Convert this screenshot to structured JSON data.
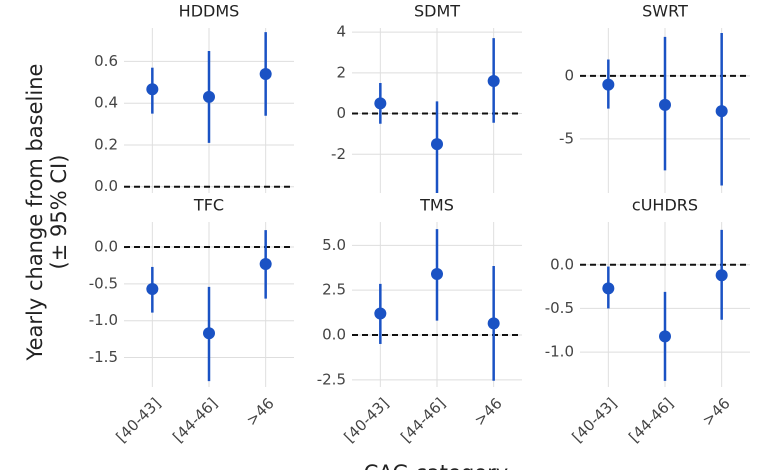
{
  "ylabel": [
    "Yearly change from baseline",
    "(± 95% CI)"
  ],
  "xlabel": "CAG category",
  "chart_data": [
    {
      "type": "pointrange",
      "title": "HDDMS",
      "categories": [
        "[40-43]",
        "[44-46]",
        ">46"
      ],
      "values": [
        0.467,
        0.43,
        0.54
      ],
      "lower": [
        0.35,
        0.21,
        0.34
      ],
      "upper": [
        0.57,
        0.65,
        0.74
      ],
      "color": "#1a52c4",
      "ylim": [
        -0.03,
        0.76
      ],
      "yticks": [
        {
          "value": 0,
          "label": "0.0"
        },
        0.2,
        0.4,
        0.6
      ],
      "hline": 0,
      "grid": true
    },
    {
      "type": "pointrange",
      "title": "SDMT",
      "categories": [
        "[40-43]",
        "[44-46]",
        ">46"
      ],
      "values": [
        0.5,
        -1.5,
        1.6
      ],
      "lower": [
        -0.5,
        -3.9,
        -0.45
      ],
      "upper": [
        1.5,
        0.6,
        3.7
      ],
      "color": "#1a52c4",
      "ylim": [
        -3.9,
        4.2
      ],
      "yticks": [
        -2,
        0,
        2,
        4
      ],
      "hline": 0,
      "grid": true
    },
    {
      "type": "pointrange",
      "title": "SWRT",
      "categories": [
        "[40-43]",
        "[44-46]",
        ">46"
      ],
      "values": [
        -0.7,
        -2.3,
        -2.8
      ],
      "lower": [
        -2.6,
        -7.5,
        -8.7
      ],
      "upper": [
        1.3,
        3.1,
        3.4
      ],
      "color": "#1a52c4",
      "ylim": [
        -9.3,
        3.8
      ],
      "yticks": [
        -5,
        0
      ],
      "hline": 0,
      "grid": true
    },
    {
      "type": "pointrange",
      "title": "TFC",
      "categories": [
        "[40-43]",
        "[44-46]",
        ">46"
      ],
      "values": [
        -0.57,
        -1.17,
        -0.23
      ],
      "lower": [
        -0.89,
        -1.82,
        -0.7
      ],
      "upper": [
        -0.27,
        -0.54,
        0.23
      ],
      "color": "#1a52c4",
      "ylim": [
        -1.9,
        0.34
      ],
      "yticks": [
        {
          "value": -1.5,
          "label": "-1.5"
        },
        {
          "value": -1,
          "label": "-1.0"
        },
        -0.5,
        {
          "value": 0,
          "label": "0.0"
        }
      ],
      "hline": 0,
      "grid": true
    },
    {
      "type": "pointrange",
      "title": "TMS",
      "categories": [
        "[40-43]",
        "[44-46]",
        ">46"
      ],
      "values": [
        1.2,
        3.4,
        0.65
      ],
      "lower": [
        -0.5,
        0.8,
        -2.55
      ],
      "upper": [
        2.85,
        5.9,
        3.85
      ],
      "color": "#1a52c4",
      "ylim": [
        -2.9,
        6.3
      ],
      "yticks": [
        -2.5,
        {
          "value": 0,
          "label": "0.0"
        },
        2.5,
        {
          "value": 5,
          "label": "5.0"
        }
      ],
      "hline": 0,
      "grid": true
    },
    {
      "type": "pointrange",
      "title": "cUHDRS",
      "categories": [
        "[40-43]",
        "[44-46]",
        ">46"
      ],
      "values": [
        -0.27,
        -0.82,
        -0.12
      ],
      "lower": [
        -0.5,
        -1.33,
        -0.63
      ],
      "upper": [
        -0.02,
        -0.31,
        0.4
      ],
      "color": "#1a52c4",
      "ylim": [
        -1.4,
        0.49
      ],
      "yticks": [
        {
          "value": -1,
          "label": "-1.0"
        },
        -0.5,
        {
          "value": 0,
          "label": "0.0"
        }
      ],
      "hline": 0,
      "grid": true
    }
  ]
}
